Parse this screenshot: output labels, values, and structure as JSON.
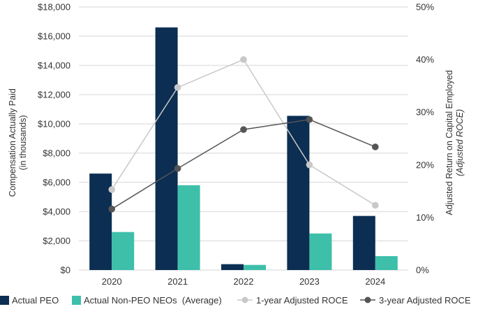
{
  "chart_data": {
    "type": "bar",
    "categories": [
      "2020",
      "2021",
      "2022",
      "2023",
      "2024"
    ],
    "series": [
      {
        "name": "Actual PEO",
        "kind": "bar",
        "axis": "left",
        "color": "#0b2e52",
        "values": [
          6600,
          16600,
          400,
          10550,
          3700
        ]
      },
      {
        "name": "Actual Non-PEO NEOs  (Average)",
        "kind": "bar",
        "axis": "left",
        "color": "#3dbfaa",
        "values": [
          2600,
          5800,
          350,
          2500,
          950
        ]
      },
      {
        "name": "1-year Adjusted ROCE",
        "kind": "line",
        "axis": "right",
        "color": "#c8c8c8",
        "values": [
          15.3,
          34.7,
          40.0,
          20.0,
          12.3
        ]
      },
      {
        "name": "3-year Adjusted ROCE",
        "kind": "line",
        "axis": "right",
        "color": "#555555",
        "values": [
          11.6,
          19.3,
          26.7,
          28.6,
          23.4
        ]
      }
    ],
    "y_left": {
      "label_line1": "Compensation Actually Paid",
      "label_line2": "(in thousands)",
      "range": [
        0,
        18000
      ],
      "ticks": [
        0,
        2000,
        4000,
        6000,
        8000,
        10000,
        12000,
        14000,
        16000,
        18000
      ],
      "tick_labels": [
        "$0",
        "$2,000",
        "$4,000",
        "$6,000",
        "$8,000",
        "$10,000",
        "$12,000",
        "$14,000",
        "$16,000",
        "$18,000"
      ]
    },
    "y_right": {
      "label_line1": "Adjusted Return on Capital Employed",
      "label_line2": "(Adjusted ROCE)",
      "range": [
        0,
        50
      ],
      "ticks": [
        0,
        10,
        20,
        30,
        40,
        50
      ],
      "tick_labels": [
        "0%",
        "10%",
        "20%",
        "30%",
        "40%",
        "50%"
      ]
    },
    "grid": true,
    "legend_position": "bottom"
  }
}
